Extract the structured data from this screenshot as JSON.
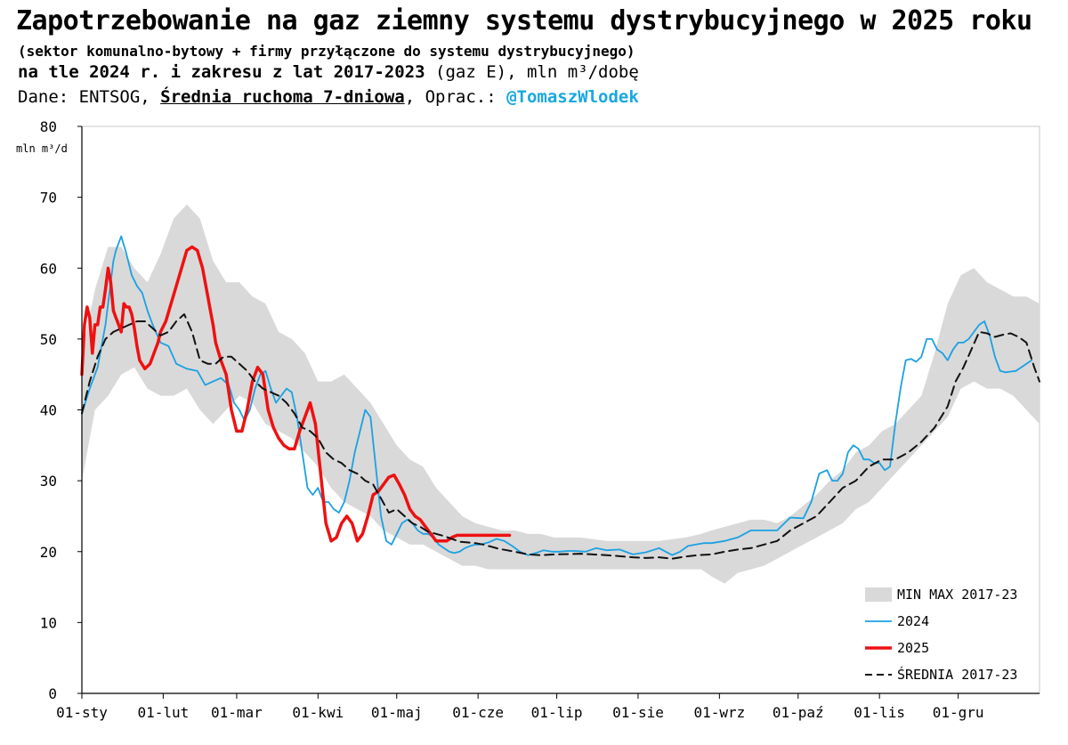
{
  "header": {
    "title": "Zapotrzebowanie na gaz ziemny systemu dystrybucyjnego w 2025 roku",
    "subtitle1": "(sektor komunalno-bytowy + firmy przyłączone do systemu dystrybucyjnego)",
    "subtitle2_bold": "na tle 2024 r. i zakresu z lat 2017-2023",
    "subtitle2_rest": " (gaz E), mln m³/dobę",
    "source_prefix": "Dane: ENTSOG, ",
    "source_underlined": "Średnia ruchoma 7-dniowa",
    "source_mid": ", Oprac.: ",
    "source_handle": "@TomaszWlodek"
  },
  "chart_data": {
    "type": "line",
    "ylabel": "mln m³/d",
    "ylim": [
      0,
      80
    ],
    "yticks": [
      0,
      10,
      20,
      30,
      40,
      50,
      60,
      70,
      80
    ],
    "xlim_day": [
      0,
      365
    ],
    "xticks": [
      {
        "label": "01-sty",
        "day": 0
      },
      {
        "label": "01-lut",
        "day": 31
      },
      {
        "label": "01-mar",
        "day": 59
      },
      {
        "label": "01-kwi",
        "day": 90
      },
      {
        "label": "01-maj",
        "day": 120
      },
      {
        "label": "01-cze",
        "day": 151
      },
      {
        "label": "01-lip",
        "day": 181
      },
      {
        "label": "01-sie",
        "day": 212
      },
      {
        "label": "01-wrz",
        "day": 243
      },
      {
        "label": "01-paź",
        "day": 273
      },
      {
        "label": "01-lis",
        "day": 304
      },
      {
        "label": "01-gru",
        "day": 334
      }
    ],
    "grid": false,
    "legend_position": "bottom-right",
    "range": {
      "name": "MIN MAX 2017-23",
      "color": "#d9d9d9",
      "day": [
        0,
        5,
        10,
        15,
        20,
        25,
        30,
        35,
        40,
        45,
        50,
        55,
        60,
        65,
        70,
        75,
        80,
        85,
        90,
        95,
        100,
        105,
        110,
        115,
        120,
        125,
        130,
        135,
        140,
        145,
        150,
        155,
        160,
        165,
        170,
        175,
        180,
        190,
        200,
        210,
        220,
        230,
        236,
        240,
        245,
        250,
        255,
        260,
        265,
        270,
        275,
        280,
        285,
        290,
        295,
        300,
        305,
        310,
        315,
        320,
        325,
        330,
        335,
        340,
        345,
        350,
        355,
        360,
        365
      ],
      "min": [
        30,
        40,
        42,
        45,
        46,
        43,
        42,
        42,
        43,
        40,
        38,
        40,
        42,
        41,
        38,
        37,
        36,
        34,
        32,
        29,
        27,
        26,
        25,
        23,
        22,
        21,
        21,
        20,
        19,
        18,
        18,
        17.5,
        17.5,
        17.5,
        17.5,
        17.5,
        17.5,
        17.5,
        17.5,
        17.5,
        17.5,
        17.5,
        17.5,
        16.5,
        15.5,
        17,
        17.5,
        18,
        19,
        20,
        21,
        22,
        23,
        24,
        26,
        27,
        29,
        31,
        33,
        35,
        37,
        39,
        43,
        44,
        43,
        43,
        42,
        40,
        38
      ],
      "max": [
        48,
        57,
        63,
        63,
        60,
        58,
        62,
        67,
        69,
        67,
        61,
        58,
        58,
        56,
        55,
        51,
        50,
        48,
        44,
        44,
        45,
        43,
        41,
        38,
        35,
        33,
        32,
        29,
        27,
        25,
        24,
        23.5,
        23,
        23,
        22.5,
        22.5,
        22,
        22,
        21.5,
        21.5,
        21.5,
        22,
        22.5,
        23,
        23.5,
        24,
        24.5,
        24.5,
        24,
        25,
        26.5,
        28,
        30,
        31.5,
        34,
        35,
        37,
        38,
        40,
        42,
        48,
        55,
        59,
        60,
        58,
        57,
        56,
        56,
        55
      ]
    },
    "series": [
      {
        "name": "2024",
        "color": "#1ba1e2",
        "width": 1.8,
        "dash": false,
        "day": [
          0,
          3,
          6,
          9,
          12,
          13,
          15,
          17,
          19,
          21,
          23,
          25,
          27,
          30,
          33,
          36,
          40,
          44,
          47,
          50,
          53,
          56,
          58,
          60,
          62,
          64,
          66,
          68,
          70,
          72,
          74,
          76,
          78,
          80,
          82,
          84,
          86,
          88,
          90,
          92,
          94,
          96,
          98,
          100,
          102,
          104,
          106,
          108,
          110,
          112,
          114,
          116,
          118,
          120,
          122,
          124,
          126,
          128,
          130,
          132,
          134,
          136,
          138,
          140,
          142,
          144,
          146,
          148,
          150,
          152,
          155,
          158,
          161,
          164,
          167,
          170,
          173,
          176,
          179,
          182,
          185,
          188,
          192,
          196,
          200,
          205,
          210,
          215,
          220,
          225,
          228,
          231,
          234,
          237,
          240,
          245,
          250,
          255,
          260,
          265,
          270,
          275,
          278,
          281,
          284,
          286,
          288,
          290,
          292,
          294,
          296,
          298,
          300,
          302,
          304,
          306,
          308,
          310,
          312,
          314,
          316,
          318,
          320,
          322,
          324,
          326,
          328,
          330,
          332,
          334,
          336,
          338,
          340,
          342,
          344,
          346,
          348,
          350,
          352,
          354,
          356,
          358,
          360,
          362,
          365
        ],
        "value": [
          39.5,
          43,
          46,
          52,
          61,
          62.5,
          64.5,
          62,
          59,
          57.5,
          56.5,
          54,
          52,
          49.5,
          49,
          46.5,
          45.8,
          45.5,
          43.5,
          44,
          44.5,
          43.5,
          41,
          40,
          38.5,
          40,
          43,
          45,
          45.5,
          43,
          41,
          42,
          43,
          42.5,
          39,
          34,
          29,
          28,
          29,
          27,
          27,
          26,
          25.5,
          27,
          30,
          34,
          37,
          40,
          39,
          32,
          25,
          21.5,
          21,
          22.5,
          24,
          24.5,
          24,
          23,
          22.5,
          22.5,
          22,
          21,
          20.5,
          20,
          19.8,
          20,
          20.5,
          20.8,
          21,
          21,
          21.3,
          21.8,
          21.5,
          20.8,
          20,
          19.5,
          19.8,
          20.2,
          20,
          20,
          20.1,
          20.1,
          20,
          20.5,
          20.2,
          20.3,
          19.6,
          19.9,
          20.5,
          19.5,
          20,
          20.8,
          21,
          21.2,
          21.2,
          21.5,
          22,
          23,
          23,
          23,
          24.8,
          24.7,
          27,
          31,
          31.5,
          30,
          30,
          31,
          34,
          35,
          34.5,
          33,
          33,
          32.5,
          32.5,
          31.5,
          32,
          38,
          43,
          47,
          47.2,
          46.8,
          47.5,
          50,
          50,
          48.5,
          48,
          47,
          48.5,
          49.5,
          49.5,
          50,
          51,
          52,
          52.5,
          50.5,
          47.5,
          45.5,
          45.3,
          45.4,
          45.5,
          46,
          46.5,
          47
        ]
      },
      {
        "name": "2025",
        "color": "#ee1111",
        "width": 3.5,
        "dash": false,
        "day": [
          0,
          1,
          2,
          3,
          4,
          5,
          6,
          7,
          8,
          9,
          10,
          11,
          12,
          13,
          14,
          15,
          16,
          17,
          18,
          19,
          20,
          21,
          22,
          24,
          26,
          28,
          29,
          30,
          32,
          34,
          36,
          38,
          40,
          42,
          44,
          46,
          48,
          49,
          50,
          51,
          53,
          55,
          57,
          59,
          61,
          63,
          65,
          67,
          69,
          71,
          73,
          75,
          77,
          79,
          81,
          83,
          85,
          87,
          89,
          91,
          93,
          95,
          97,
          99,
          101,
          103,
          105,
          107,
          109,
          111,
          113,
          115,
          117,
          119,
          121,
          123,
          125,
          127,
          129,
          131,
          133,
          135,
          137,
          139,
          141,
          143,
          145,
          147,
          149,
          151,
          153,
          155,
          158,
          161,
          163
        ],
        "value": [
          45,
          52,
          54.5,
          53,
          48,
          52,
          52,
          54.5,
          54.5,
          57,
          60,
          58,
          54,
          53,
          52,
          51,
          55,
          54.5,
          54.5,
          53.5,
          51.5,
          49,
          47,
          45.8,
          46.5,
          48.5,
          49.5,
          51,
          52.5,
          55,
          57.5,
          60,
          62.5,
          63,
          62.5,
          60,
          56,
          54,
          52,
          49.5,
          47,
          45,
          40,
          37,
          37,
          40,
          44,
          46,
          45,
          40,
          37.5,
          36,
          35,
          34.5,
          34.5,
          37,
          39,
          41,
          38,
          31,
          24,
          21.5,
          22,
          24,
          25,
          24,
          21.5,
          22.5,
          25,
          28,
          28.5,
          29.5,
          30.5,
          30.8,
          29.5,
          28,
          26,
          25,
          24.5,
          23.5,
          22.5,
          21.5,
          21.5,
          21.5,
          22,
          22.3,
          22.3,
          22.3,
          22.3,
          22.3,
          22.3,
          22.3,
          22.3,
          22.3,
          22.3
        ],
        "clip_day": 165
      },
      {
        "name": "ŚREDNIA 2017-23",
        "color": "#111111",
        "width": 2,
        "dash": true,
        "day": [
          0,
          3,
          6,
          9,
          12,
          15,
          18,
          21,
          24,
          27,
          30,
          33,
          36,
          39,
          42,
          45,
          48,
          51,
          54,
          57,
          60,
          63,
          66,
          69,
          72,
          75,
          78,
          81,
          84,
          87,
          90,
          93,
          96,
          99,
          102,
          105,
          108,
          111,
          114,
          117,
          120,
          123,
          126,
          129,
          132,
          135,
          138,
          141,
          144,
          147,
          150,
          153,
          156,
          159,
          162,
          165,
          170,
          175,
          180,
          190,
          200,
          210,
          215,
          220,
          225,
          230,
          235,
          240,
          245,
          250,
          255,
          260,
          265,
          270,
          275,
          280,
          285,
          290,
          295,
          300,
          305,
          310,
          315,
          320,
          325,
          330,
          333,
          336,
          339,
          342,
          345,
          348,
          351,
          354,
          357,
          360,
          363,
          365
        ],
        "value": [
          39.5,
          44,
          47.5,
          50,
          51,
          51.5,
          52,
          52.5,
          52.5,
          51.5,
          50.5,
          51,
          52.5,
          53.5,
          51,
          47,
          46.5,
          46.5,
          47.5,
          47.5,
          46.5,
          45.5,
          44,
          43,
          42.5,
          42,
          41,
          39.5,
          37.5,
          37,
          36,
          34,
          33,
          32.5,
          31.5,
          31,
          30,
          29.5,
          27.5,
          25.5,
          26,
          25,
          24,
          23.5,
          22.8,
          22.5,
          22.2,
          21.8,
          21.4,
          21.3,
          21.2,
          21,
          20.7,
          20.4,
          20.2,
          20,
          19.6,
          19.5,
          19.6,
          19.7,
          19.5,
          19.2,
          19.1,
          19.2,
          19,
          19.3,
          19.5,
          19.6,
          20,
          20.3,
          20.5,
          21,
          21.5,
          23,
          24,
          25,
          27,
          29,
          30,
          32,
          33,
          33,
          34,
          35.5,
          37.5,
          40.5,
          44,
          46,
          48.5,
          51,
          50.8,
          50.3,
          50.6,
          50.8,
          50.3,
          49.5,
          46,
          44,
          43.2
        ]
      }
    ]
  }
}
